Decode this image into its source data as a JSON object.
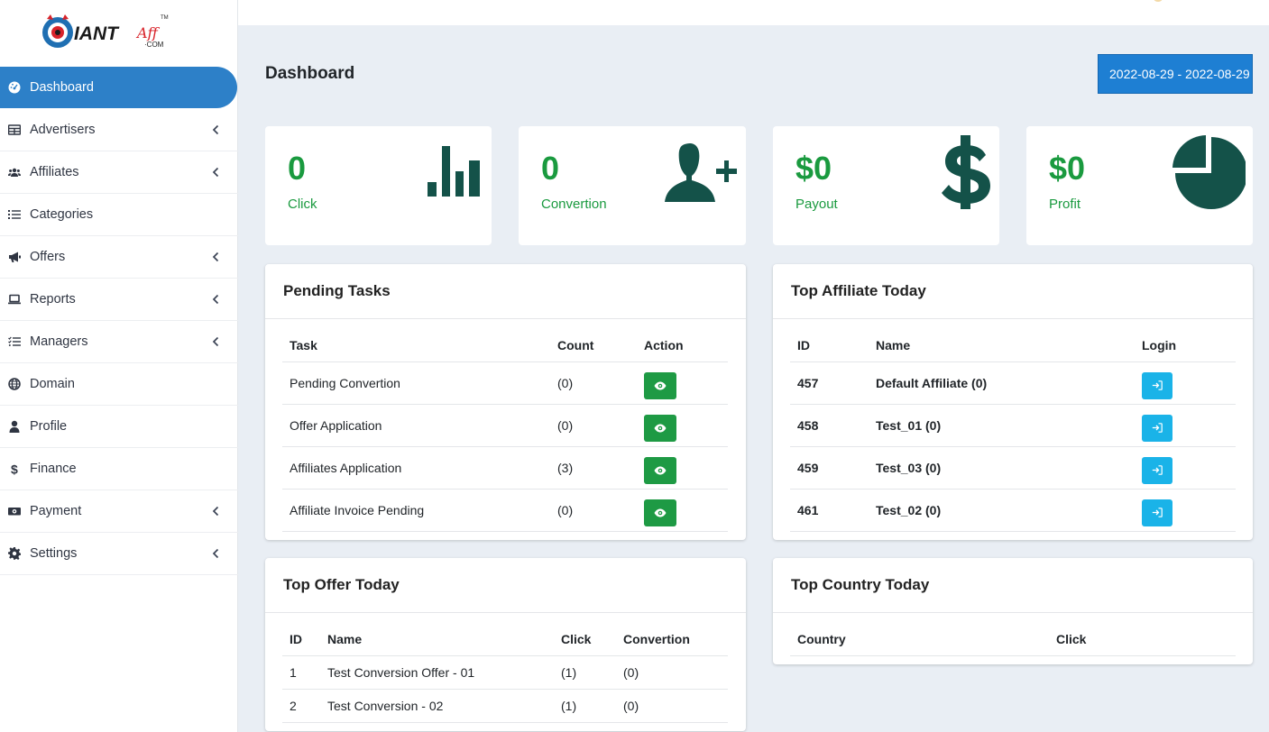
{
  "brand": {
    "logo_text": "GIANT",
    "logo_suffix": "·COM",
    "logo_tm": "TM"
  },
  "sidebar": {
    "items": [
      {
        "label": "Dashboard",
        "icon": "dashboard-icon",
        "active": true,
        "has_submenu": false
      },
      {
        "label": "Advertisers",
        "icon": "table-icon",
        "has_submenu": true
      },
      {
        "label": "Affiliates",
        "icon": "users-icon",
        "has_submenu": true
      },
      {
        "label": "Categories",
        "icon": "list-icon",
        "has_submenu": false
      },
      {
        "label": "Offers",
        "icon": "bullhorn-icon",
        "has_submenu": true
      },
      {
        "label": "Reports",
        "icon": "laptop-icon",
        "has_submenu": true
      },
      {
        "label": "Managers",
        "icon": "tasks-icon",
        "has_submenu": true
      },
      {
        "label": "Domain",
        "icon": "globe-icon",
        "has_submenu": false
      },
      {
        "label": "Profile",
        "icon": "user-icon",
        "has_submenu": false
      },
      {
        "label": "Finance",
        "icon": "dollar-icon",
        "has_submenu": false
      },
      {
        "label": "Payment",
        "icon": "money-icon",
        "has_submenu": true
      },
      {
        "label": "Settings",
        "icon": "gear-icon",
        "has_submenu": true
      }
    ]
  },
  "header": {
    "title": "Dashboard",
    "date_range": "2022-08-29 - 2022-08-29"
  },
  "stats": [
    {
      "value": "0",
      "label": "Click",
      "icon": "bar-chart-icon"
    },
    {
      "value": "0",
      "label": "Convertion",
      "icon": "user-plus-icon"
    },
    {
      "value": "$0",
      "label": "Payout",
      "icon": "dollar-sign-icon"
    },
    {
      "value": "$0",
      "label": "Profit",
      "icon": "pie-chart-icon"
    }
  ],
  "pending_tasks": {
    "title": "Pending Tasks",
    "columns": [
      "Task",
      "Count",
      "Action"
    ],
    "rows": [
      {
        "task": "Pending Convertion",
        "count": "(0)"
      },
      {
        "task": "Offer Application",
        "count": "(0)"
      },
      {
        "task": "Affiliates Application",
        "count": "(3)"
      },
      {
        "task": "Affiliate Invoice Pending",
        "count": "(0)"
      }
    ]
  },
  "top_affiliate": {
    "title": "Top Affiliate Today",
    "columns": [
      "ID",
      "Name",
      "Login"
    ],
    "rows": [
      {
        "id": "457",
        "name": "Default Affiliate (0)"
      },
      {
        "id": "458",
        "name": "Test_01 (0)"
      },
      {
        "id": "459",
        "name": "Test_03 (0)"
      },
      {
        "id": "461",
        "name": "Test_02 (0)"
      }
    ]
  },
  "top_offer": {
    "title": "Top Offer Today",
    "columns": [
      "ID",
      "Name",
      "Click",
      "Convertion"
    ],
    "rows": [
      {
        "id": "1",
        "name": "Test Conversion Offer - 01",
        "click": "(1)",
        "convertion": "(0)"
      },
      {
        "id": "2",
        "name": "Test Conversion - 02",
        "click": "(1)",
        "convertion": "(0)"
      }
    ]
  },
  "top_country": {
    "title": "Top Country Today",
    "columns": [
      "Country",
      "Click"
    ]
  },
  "colors": {
    "accent": "#2d80c8",
    "green_text": "#1a9a3f",
    "icon_dark": "#145249",
    "action_green": "#1e9a44",
    "login_blue": "#1ab3e8"
  }
}
